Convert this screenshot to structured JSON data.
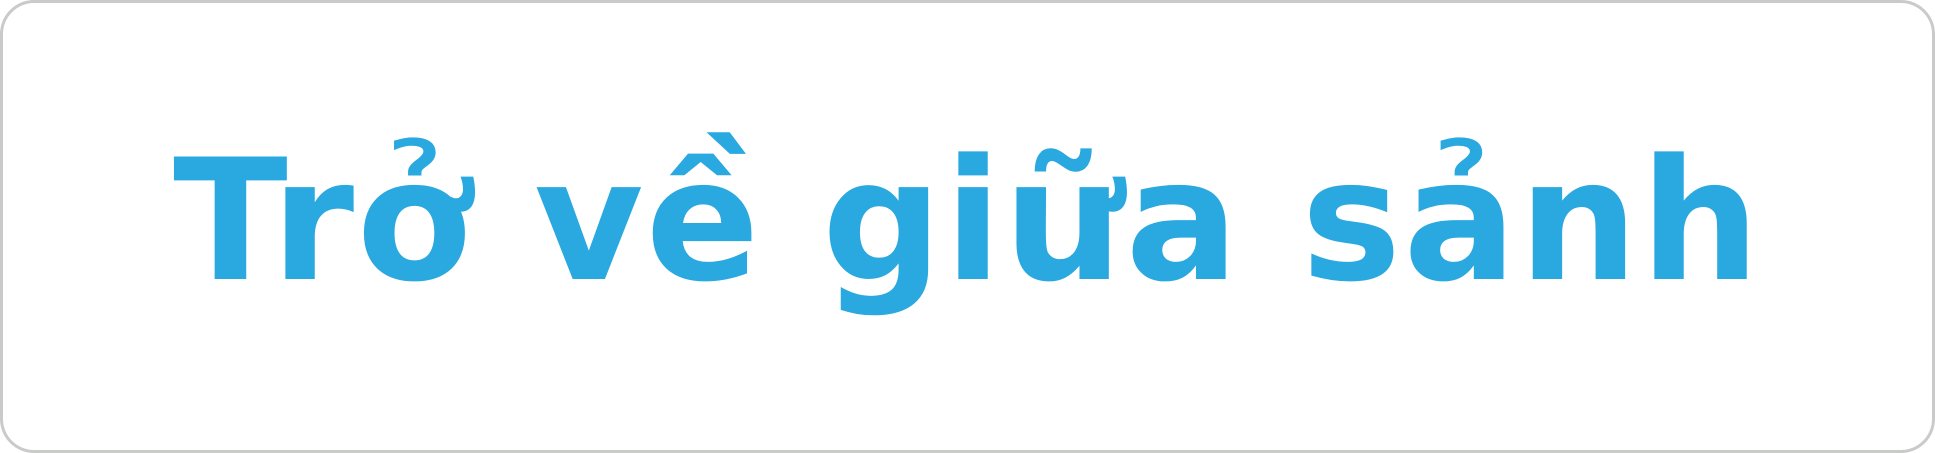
{
  "button": {
    "label": "Trở về giữa sảnh",
    "text_color": "#2aa8e0",
    "background_color": "#ffffff",
    "border_color": "#c9cbc9"
  }
}
